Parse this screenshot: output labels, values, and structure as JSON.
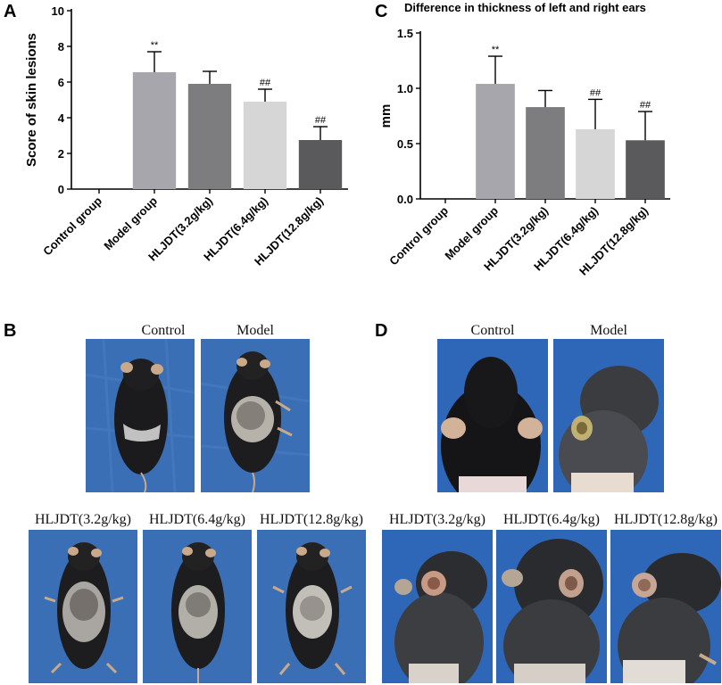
{
  "panels": {
    "a": "A",
    "b": "B",
    "c": "C",
    "d": "D"
  },
  "chart_data": [
    {
      "type": "bar",
      "title": "",
      "xlabel": "",
      "ylabel": "Score of skin lesions",
      "ylim": [
        0,
        10
      ],
      "yticks": [
        "0",
        "2",
        "4",
        "6",
        "8",
        "10"
      ],
      "categories": [
        "Control group",
        "Model group",
        "HLJDT(3.2g/kg)",
        "HLJDT(6.4g/kg)",
        "HLJDT(12.8g/kg)"
      ],
      "values": [
        0,
        6.55,
        5.9,
        4.9,
        2.75
      ],
      "errors": [
        0,
        1.15,
        0.7,
        0.7,
        0.75
      ],
      "annotations": [
        "",
        "**",
        "",
        "##",
        "##"
      ],
      "colors": [
        "#a6a6ac",
        "#a6a6ac",
        "#7d7d80",
        "#d6d6d6",
        "#5a5a5c"
      ]
    },
    {
      "type": "bar",
      "title": "Difference in thickness of left and right ears",
      "xlabel": "",
      "ylabel": "mm",
      "ylim": [
        0,
        1.5
      ],
      "yticks": [
        "0.0",
        "0.5",
        "1.0",
        "1.5"
      ],
      "categories": [
        "Control group",
        "Model group",
        "HLJDT(3.2g/kg)",
        "HLJDT(6.4g/kg)",
        "HLJDT(12.8g/kg)"
      ],
      "values": [
        0,
        1.04,
        0.83,
        0.63,
        0.53
      ],
      "errors": [
        0,
        0.25,
        0.15,
        0.27,
        0.26
      ],
      "annotations": [
        "",
        "**",
        "",
        "##",
        "##"
      ],
      "colors": [
        "#a6a6ac",
        "#a6a6ac",
        "#7d7d80",
        "#d6d6d6",
        "#5a5a5c"
      ]
    }
  ],
  "photos_b": {
    "labels": [
      "Control",
      "Model",
      "HLJDT(3.2g/kg)",
      "HLJDT(6.4g/kg)",
      "HLJDT(12.8g/kg)"
    ]
  },
  "photos_d": {
    "labels": [
      "Control",
      "Model",
      "HLJDT(3.2g/kg)",
      "HLJDT(6.4g/kg)",
      "HLJDT(12.8g/kg)"
    ]
  }
}
